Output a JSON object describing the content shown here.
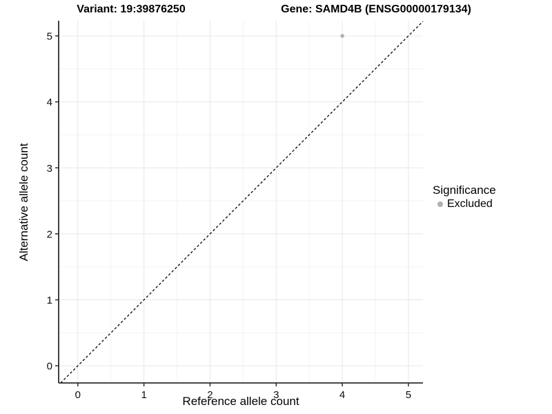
{
  "titles": {
    "variant": "Variant: 19:39876250",
    "gene": "Gene: SAMD4B (ENSG00000179134)"
  },
  "chart_data": {
    "type": "scatter",
    "title_left": "Variant: 19:39876250",
    "title_right": "Gene: SAMD4B (ENSG00000179134)",
    "xlabel": "Reference allele count",
    "ylabel": "Alternative allele count",
    "xlim": [
      -0.29,
      5.22
    ],
    "ylim": [
      -0.26,
      5.23
    ],
    "xticks": [
      0,
      1,
      2,
      3,
      4,
      5
    ],
    "yticks": [
      0,
      1,
      2,
      3,
      4,
      5
    ],
    "minor_ticks_x": [
      0.5,
      1.5,
      2.5,
      3.5,
      4.5
    ],
    "minor_ticks_y": [
      0.5,
      1.5,
      2.5,
      3.5,
      4.5
    ],
    "grid": "major+minor",
    "legend_position": "right",
    "series": [
      {
        "name": "Excluded",
        "color": "#b0b0b0",
        "points": [
          {
            "x": 4,
            "y": 5
          }
        ]
      }
    ],
    "reference_line": {
      "type": "identity y=x",
      "style": "dashed",
      "color": "#000000"
    }
  },
  "legend": {
    "title": "Significance",
    "items": [
      {
        "label": "Excluded",
        "color": "#b0b0b0"
      }
    ]
  },
  "style": {
    "background": "#ffffff",
    "axis_line_color": "#2b2b2b",
    "tick_color": "#2b2b2b",
    "grid_major_color": "#e7e7e7",
    "grid_minor_color": "#f3f3f3",
    "text_color": "#000000",
    "point_color": "#b0b0b0",
    "dashed_line_color": "#000000"
  }
}
